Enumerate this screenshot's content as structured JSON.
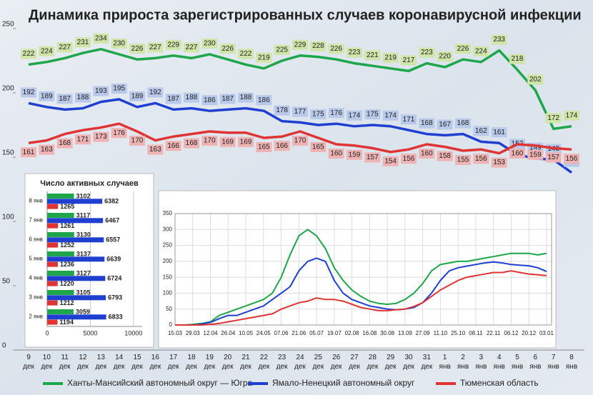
{
  "chart_data": [
    {
      "type": "line",
      "title": "Динамика прироста зарегистрированных случаев коронавирусной инфекции",
      "categories": [
        "9 дек",
        "10 дек",
        "11 дек",
        "12 дек",
        "13 дек",
        "14 дек",
        "15 дек",
        "16 дек",
        "17 дек",
        "18 дек",
        "19 дек",
        "20 дек",
        "21 дек",
        "22 дек",
        "23 дек",
        "24 дек",
        "25 дек",
        "26 дек",
        "27 дек",
        "28 дек",
        "29 дек",
        "30 дек",
        "31 дек",
        "1 янв",
        "2 янв",
        "3 янв",
        "4 янв",
        "5 янв",
        "6 янв",
        "7 янв",
        "8 янв"
      ],
      "series": [
        {
          "name": "Ханты-Мансийский автономный округ — Югра",
          "color": "#1ea64a",
          "label_color": "#cfe6a8",
          "values": [
            222,
            224,
            227,
            231,
            234,
            230,
            226,
            227,
            229,
            227,
            230,
            226,
            222,
            219,
            225,
            229,
            228,
            226,
            223,
            221,
            219,
            217,
            223,
            220,
            226,
            224,
            233,
            218,
            202,
            172,
            174
          ]
        },
        {
          "name": "Ямало-Ненецкий автономный округ",
          "color": "#1f3fd0",
          "label_color": "#b9c9ea",
          "values": [
            192,
            189,
            187,
            188,
            193,
            195,
            189,
            192,
            187,
            188,
            186,
            187,
            188,
            186,
            178,
            177,
            175,
            176,
            174,
            175,
            174,
            171,
            168,
            167,
            168,
            162,
            161,
            152,
            149,
            148,
            138
          ]
        },
        {
          "name": "Тюменская область",
          "color": "#e03434",
          "label_color": "#f0b3b3",
          "values": [
            161,
            163,
            168,
            171,
            173,
            176,
            170,
            163,
            166,
            168,
            170,
            169,
            169,
            165,
            166,
            170,
            165,
            160,
            159,
            157,
            154,
            156,
            160,
            158,
            155,
            156,
            153,
            160,
            159,
            157,
            156
          ]
        }
      ],
      "ylim": [
        0,
        250
      ],
      "yticks": [
        0,
        50,
        100,
        150,
        200,
        250
      ],
      "grid": false
    },
    {
      "type": "bar",
      "orientation": "horizontal",
      "title": "Число активных случаев",
      "categories": [
        "8 янв",
        "7 янв",
        "6 янв",
        "5 янв",
        "4 янв",
        "3 янв",
        "2 янв"
      ],
      "series": [
        {
          "color": "#1ea64a",
          "values": [
            3102,
            3117,
            3130,
            3137,
            3127,
            3105,
            3059
          ]
        },
        {
          "color": "#1f3fd0",
          "values": [
            6382,
            6467,
            6557,
            6639,
            6724,
            6793,
            6833
          ]
        },
        {
          "color": "#e03434",
          "values": [
            1265,
            1261,
            1252,
            1236,
            1220,
            1212,
            1194
          ]
        }
      ],
      "xlim": [
        0,
        11000
      ],
      "xticks": [
        0,
        5000,
        10000
      ],
      "grid": true
    },
    {
      "type": "line",
      "categories": [
        "15.03",
        null,
        "29.03",
        null,
        "12.04",
        null,
        "26.04",
        null,
        "10.05",
        null,
        "24.05",
        null,
        "07.06",
        null,
        "21.06",
        null,
        "05.07",
        null,
        "19.07",
        null,
        "02.08",
        null,
        "16.08",
        null,
        "30.08",
        null,
        "13.09",
        null,
        "27.09",
        null,
        "11.10",
        null,
        "25.10",
        null,
        "08.11",
        null,
        "22.11",
        null,
        "06.12",
        null,
        "20.12",
        null,
        "03.01"
      ],
      "series": [
        {
          "color": "#1ea64a",
          "values": [
            0,
            0,
            2,
            5,
            10,
            30,
            40,
            50,
            60,
            70,
            80,
            100,
            150,
            220,
            280,
            300,
            280,
            240,
            180,
            140,
            110,
            90,
            75,
            68,
            65,
            68,
            80,
            100,
            130,
            170,
            190,
            195,
            200,
            200,
            205,
            210,
            215,
            220,
            225,
            225,
            225,
            220,
            225
          ]
        },
        {
          "color": "#1f3fd0",
          "values": [
            0,
            0,
            0,
            3,
            8,
            20,
            30,
            30,
            40,
            50,
            60,
            80,
            100,
            120,
            170,
            200,
            210,
            200,
            140,
            100,
            80,
            70,
            60,
            55,
            50,
            48,
            50,
            55,
            70,
            100,
            140,
            170,
            180,
            185,
            190,
            195,
            198,
            195,
            190,
            188,
            186,
            180,
            168
          ]
        },
        {
          "color": "#e03434",
          "values": [
            0,
            0,
            0,
            0,
            2,
            5,
            10,
            15,
            20,
            25,
            30,
            35,
            50,
            60,
            70,
            75,
            85,
            80,
            80,
            75,
            65,
            55,
            50,
            45,
            45,
            48,
            50,
            58,
            70,
            90,
            110,
            125,
            140,
            150,
            155,
            160,
            165,
            165,
            170,
            165,
            160,
            158,
            155
          ]
        }
      ],
      "ylim": [
        0,
        350
      ],
      "yticks": [
        0,
        50,
        100,
        150,
        200,
        250,
        300,
        350
      ],
      "grid": true
    }
  ]
}
